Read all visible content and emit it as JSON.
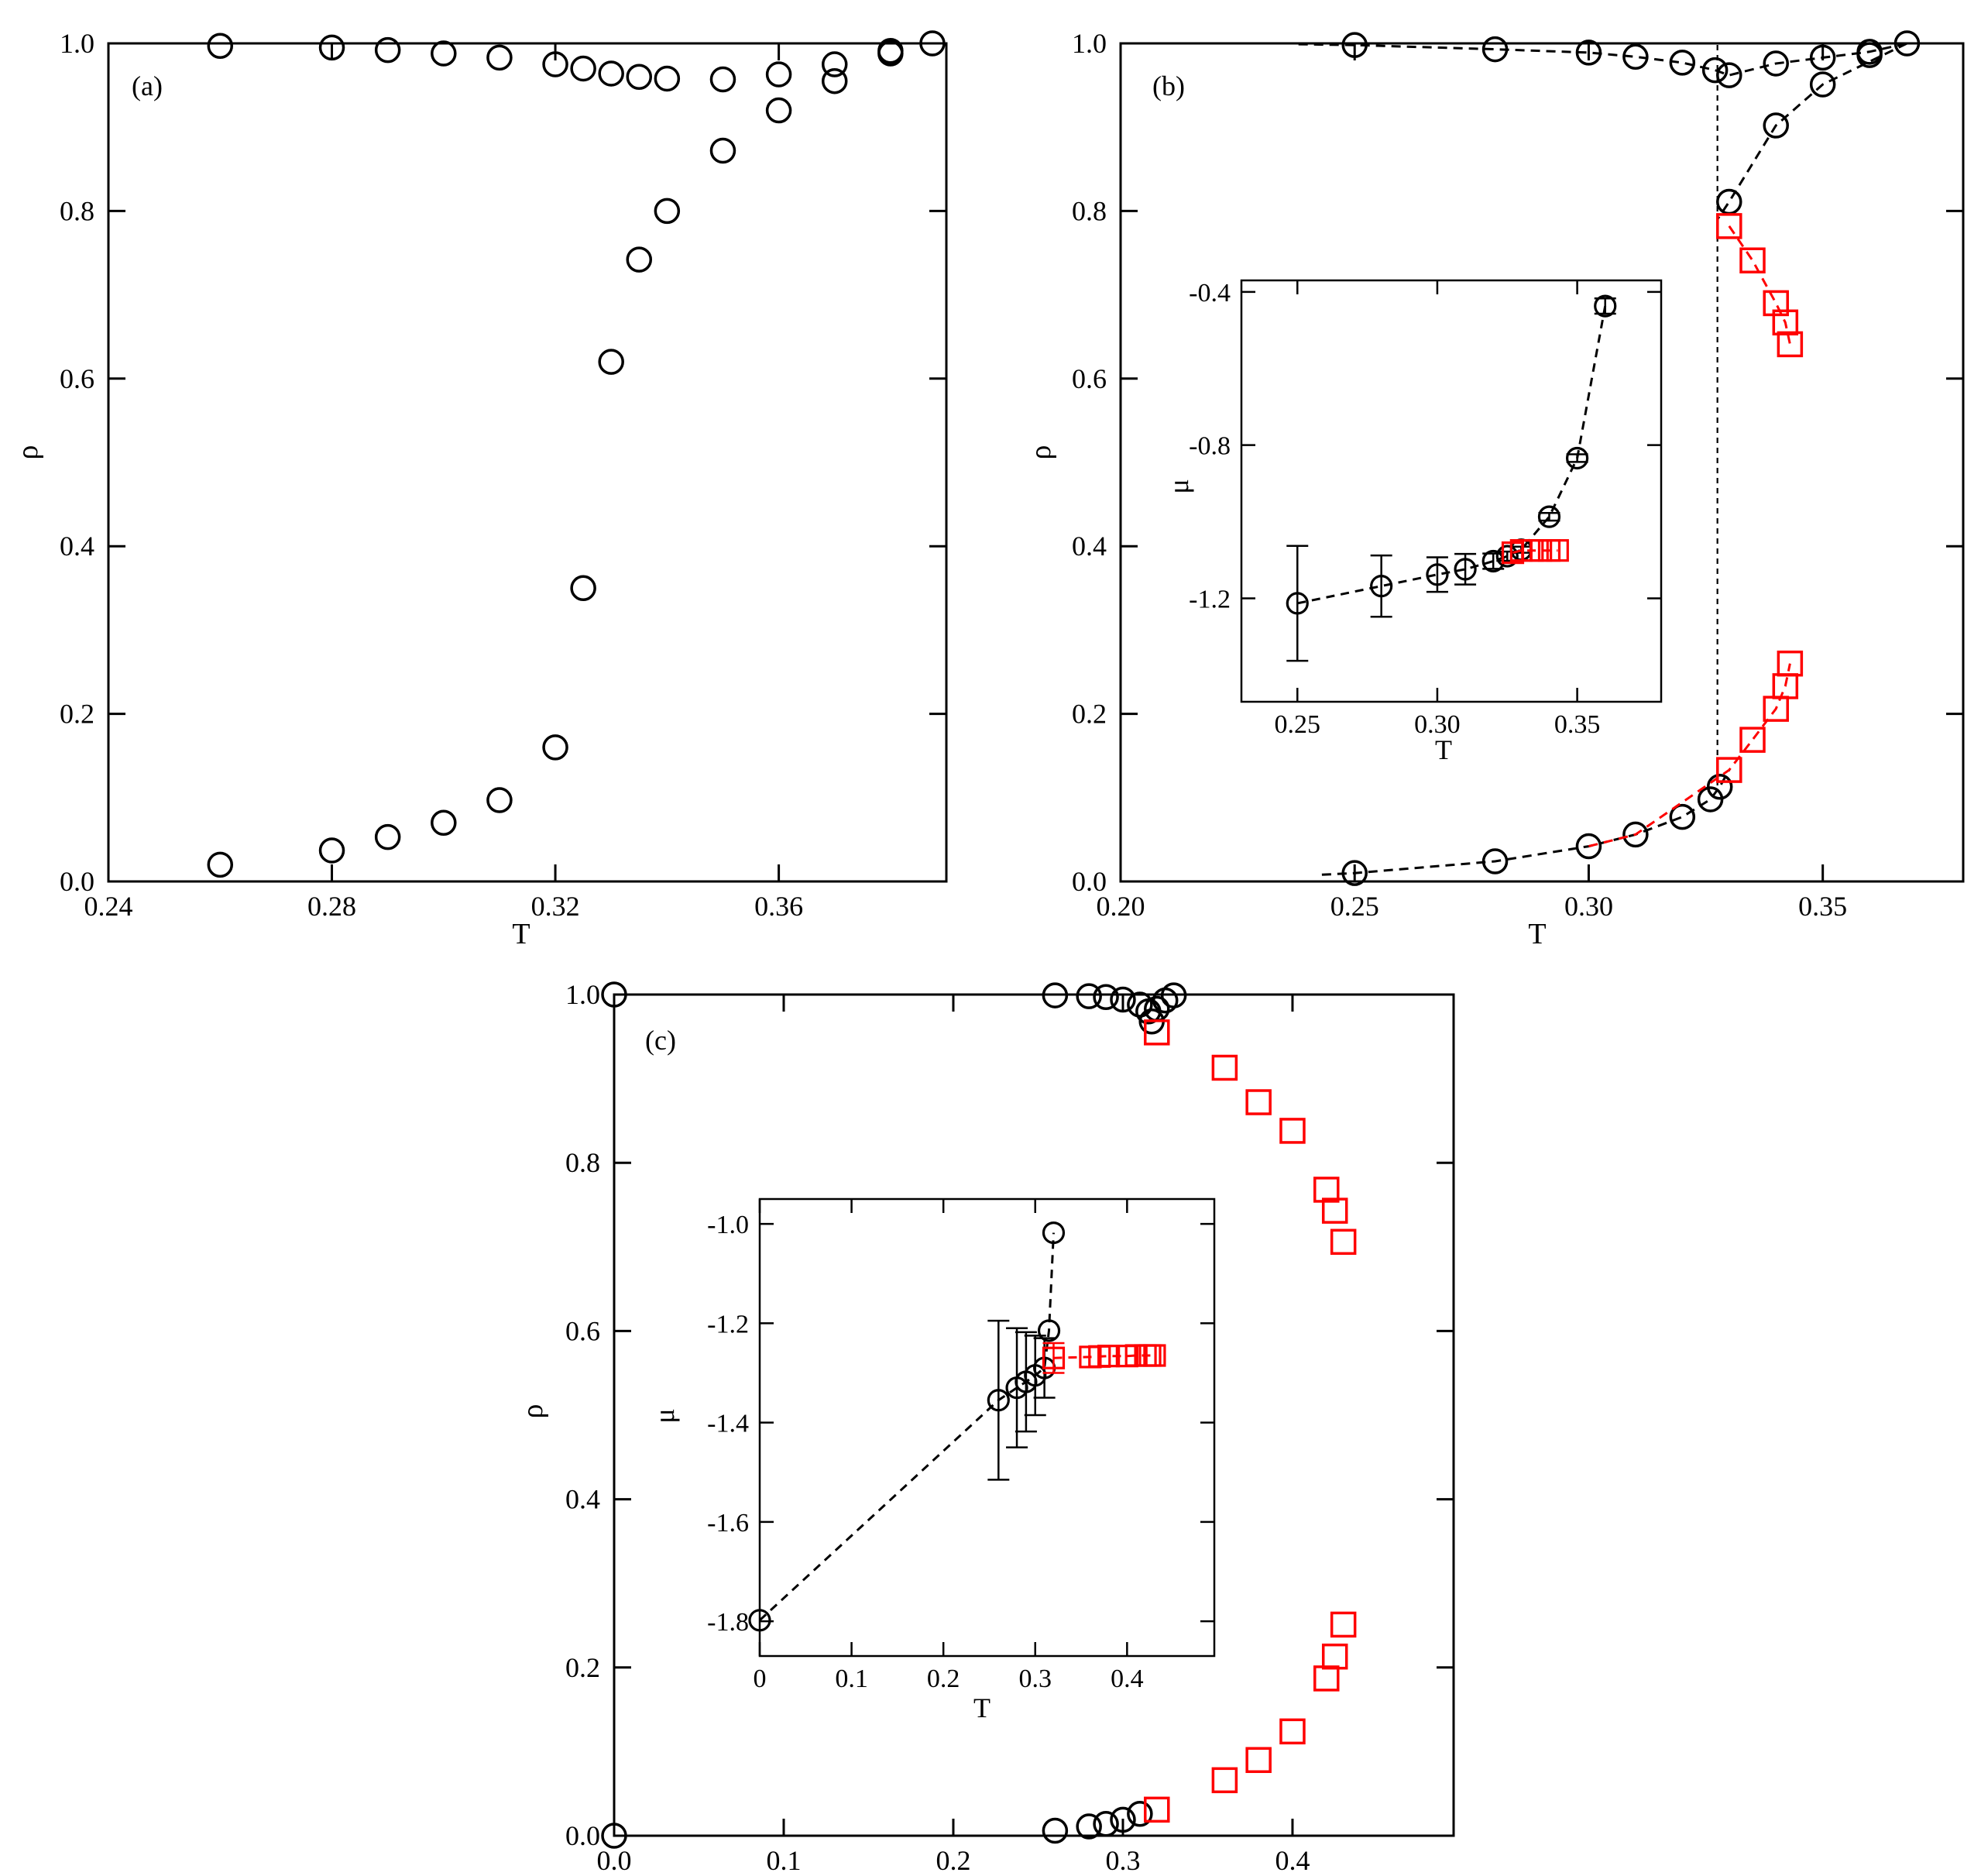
{
  "chart_data": [
    {
      "panel": "(a)",
      "type": "scatter",
      "title": "",
      "xlabel": "T",
      "ylabel": "ρ",
      "xlim": [
        0.24,
        0.39
      ],
      "ylim": [
        0.0,
        1.0
      ],
      "xticks": [
        0.24,
        0.28,
        0.32,
        0.36
      ],
      "xtick_labels": [
        "0.24",
        "0.28",
        "0.32",
        "0.36"
      ],
      "yticks": [
        0.0,
        0.2,
        0.4,
        0.6,
        0.8,
        1.0
      ],
      "ytick_labels": [
        "0.0",
        "0.2",
        "0.4",
        "0.6",
        "0.8",
        "1.0"
      ],
      "grid": false,
      "series": [
        {
          "marker": "circle",
          "color": "#000000",
          "line": "none",
          "points": [
            [
              0.26,
              0.997
            ],
            [
              0.28,
              0.995
            ],
            [
              0.29,
              0.992
            ],
            [
              0.3,
              0.988
            ],
            [
              0.31,
              0.983
            ],
            [
              0.32,
              0.975
            ],
            [
              0.325,
              0.97
            ],
            [
              0.33,
              0.964
            ],
            [
              0.335,
              0.96
            ],
            [
              0.34,
              0.958
            ],
            [
              0.35,
              0.957
            ],
            [
              0.36,
              0.963
            ],
            [
              0.37,
              0.975
            ],
            [
              0.38,
              0.988
            ],
            [
              0.38,
              0.991
            ],
            [
              0.3875,
              1.0
            ],
            [
              0.26,
              0.02
            ],
            [
              0.28,
              0.037
            ],
            [
              0.29,
              0.053
            ],
            [
              0.3,
              0.07
            ],
            [
              0.31,
              0.097
            ],
            [
              0.32,
              0.16
            ],
            [
              0.325,
              0.35
            ],
            [
              0.33,
              0.62
            ],
            [
              0.335,
              0.742
            ],
            [
              0.34,
              0.8
            ],
            [
              0.35,
              0.872
            ],
            [
              0.36,
              0.92
            ],
            [
              0.37,
              0.955
            ]
          ]
        }
      ]
    },
    {
      "panel": "(b)",
      "type": "line",
      "title": "",
      "xlabel": "T",
      "ylabel": "ρ",
      "xlim": [
        0.2,
        0.38
      ],
      "ylim": [
        0.0,
        1.0
      ],
      "xticks": [
        0.2,
        0.25,
        0.3,
        0.35
      ],
      "xtick_labels": [
        "0.20",
        "0.25",
        "0.30",
        "0.35"
      ],
      "yticks": [
        0.0,
        0.2,
        0.4,
        0.6,
        0.8,
        1.0
      ],
      "ytick_labels": [
        "0.0",
        "0.2",
        "0.4",
        "0.6",
        "0.8",
        "1.0"
      ],
      "grid": false,
      "vertical_line_x": 0.3275,
      "series": [
        {
          "marker": "circle",
          "color": "#000000",
          "line": "dashed",
          "line_points": [
            [
              0.238,
              0.999
            ],
            [
              0.25,
              0.998
            ],
            [
              0.28,
              0.993
            ],
            [
              0.3,
              0.989
            ],
            [
              0.31,
              0.984
            ],
            [
              0.32,
              0.977
            ],
            [
              0.327,
              0.968
            ],
            [
              0.33,
              0.962
            ],
            [
              0.34,
              0.976
            ],
            [
              0.35,
              0.983
            ],
            [
              0.36,
              0.99
            ],
            [
              0.368,
              1.0
            ]
          ],
          "points": [
            [
              0.25,
              0.998
            ],
            [
              0.28,
              0.993
            ],
            [
              0.3,
              0.989
            ],
            [
              0.31,
              0.984
            ],
            [
              0.32,
              0.977
            ],
            [
              0.327,
              0.968
            ],
            [
              0.33,
              0.962
            ],
            [
              0.34,
              0.976
            ],
            [
              0.35,
              0.983
            ],
            [
              0.36,
              0.99
            ],
            [
              0.36,
              0.986
            ],
            [
              0.368,
              1.0
            ]
          ]
        },
        {
          "marker": "circle",
          "color": "#000000",
          "line": "dashed",
          "line_points": [
            [
              0.368,
              1.0
            ],
            [
              0.35,
              0.951
            ],
            [
              0.34,
              0.902
            ],
            [
              0.33,
              0.811
            ],
            [
              0.3275,
              0.79
            ]
          ],
          "points": [
            [
              0.35,
              0.951
            ],
            [
              0.34,
              0.902
            ],
            [
              0.33,
              0.811
            ]
          ]
        },
        {
          "marker": "circle",
          "color": "#000000",
          "line": "dashed",
          "line_points": [
            [
              0.243,
              0.008
            ],
            [
              0.25,
              0.01
            ],
            [
              0.28,
              0.024
            ],
            [
              0.3,
              0.042
            ],
            [
              0.31,
              0.056
            ],
            [
              0.32,
              0.077
            ],
            [
              0.326,
              0.098
            ],
            [
              0.328,
              0.113
            ],
            [
              0.33,
              0.133
            ]
          ],
          "points": [
            [
              0.25,
              0.01
            ],
            [
              0.28,
              0.024
            ],
            [
              0.3,
              0.042
            ],
            [
              0.31,
              0.056
            ],
            [
              0.32,
              0.077
            ],
            [
              0.326,
              0.098
            ],
            [
              0.328,
              0.113
            ]
          ]
        },
        {
          "marker": "square",
          "color": "#ff0000",
          "line": "dashed",
          "line_points": [
            [
              0.33,
              0.782
            ],
            [
              0.335,
              0.741
            ],
            [
              0.34,
              0.69
            ],
            [
              0.342,
              0.667
            ],
            [
              0.343,
              0.641
            ]
          ],
          "points": [
            [
              0.33,
              0.782
            ],
            [
              0.335,
              0.741
            ],
            [
              0.34,
              0.69
            ],
            [
              0.342,
              0.667
            ],
            [
              0.343,
              0.641
            ]
          ]
        },
        {
          "marker": "square",
          "color": "#ff0000",
          "line": "dashed",
          "line_points": [
            [
              0.3,
              0.042
            ],
            [
              0.31,
              0.056
            ],
            [
              0.33,
              0.133
            ],
            [
              0.335,
              0.169
            ],
            [
              0.34,
              0.206
            ],
            [
              0.342,
              0.233
            ],
            [
              0.343,
              0.26
            ]
          ],
          "points": [
            [
              0.33,
              0.133
            ],
            [
              0.335,
              0.169
            ],
            [
              0.34,
              0.206
            ],
            [
              0.342,
              0.233
            ],
            [
              0.343,
              0.26
            ]
          ]
        }
      ],
      "inset": {
        "type": "line",
        "xlabel": "T",
        "ylabel": "μ",
        "xlim": [
          0.23,
          0.38
        ],
        "ylim": [
          -1.47,
          -0.37
        ],
        "xticks": [
          0.25,
          0.3,
          0.35
        ],
        "xtick_labels": [
          "0.25",
          "0.30",
          "0.35"
        ],
        "yticks": [
          -1.2,
          -0.8,
          -0.4
        ],
        "ytick_labels": [
          "-1.2",
          "-0.8",
          "-0.4"
        ],
        "series": [
          {
            "marker": "circle",
            "color": "#000000",
            "line": "dashed",
            "points": [
              [
                0.25,
                -1.213,
                0.15
              ],
              [
                0.28,
                -1.168,
                0.08
              ],
              [
                0.3,
                -1.138,
                0.045
              ],
              [
                0.31,
                -1.124,
                0.04
              ],
              [
                0.32,
                -1.103,
                0.02
              ],
              [
                0.325,
                -1.09,
                0.012
              ],
              [
                0.33,
                -1.073,
                0.008
              ],
              [
                0.34,
                -0.987,
                0.01
              ],
              [
                0.35,
                -0.834,
                0.01
              ],
              [
                0.36,
                -0.437,
                0.02
              ]
            ]
          },
          {
            "marker": "square",
            "color": "#ff0000",
            "line": "dashed",
            "points": [
              [
                0.327,
                -1.081,
                0.0
              ],
              [
                0.33,
                -1.075,
                0.0
              ],
              [
                0.334,
                -1.075,
                0.0
              ],
              [
                0.337,
                -1.075,
                0.0
              ],
              [
                0.34,
                -1.075,
                0.0
              ],
              [
                0.343,
                -1.075,
                0.0
              ]
            ]
          }
        ]
      }
    },
    {
      "panel": "(c)",
      "type": "scatter",
      "title": "",
      "xlabel": "",
      "ylabel": "ρ",
      "xlim": [
        0.0,
        0.495
      ],
      "ylim": [
        0.0,
        1.0
      ],
      "xticks": [
        0.0,
        0.1,
        0.2,
        0.3,
        0.4
      ],
      "xtick_labels": [
        "0.0",
        "0.1",
        "0.2",
        "0.3",
        "0.4"
      ],
      "yticks": [
        0.0,
        0.2,
        0.4,
        0.6,
        0.8,
        1.0
      ],
      "ytick_labels": [
        "0.0",
        "0.2",
        "0.4",
        "0.6",
        "0.8",
        "1.0"
      ],
      "grid": false,
      "series": [
        {
          "marker": "circle",
          "color": "#000000",
          "line": "none",
          "points": [
            [
              0.0,
              1.0
            ],
            [
              0.26,
              0.999
            ],
            [
              0.28,
              0.998
            ],
            [
              0.29,
              0.997
            ],
            [
              0.3,
              0.994
            ],
            [
              0.31,
              0.988
            ],
            [
              0.315,
              0.98
            ],
            [
              0.317,
              0.968
            ],
            [
              0.32,
              0.983
            ],
            [
              0.325,
              0.993
            ],
            [
              0.33,
              0.999
            ],
            [
              0.0,
              0.0
            ],
            [
              0.26,
              0.006
            ],
            [
              0.28,
              0.011
            ],
            [
              0.29,
              0.014
            ],
            [
              0.3,
              0.019
            ],
            [
              0.31,
              0.026
            ]
          ]
        },
        {
          "marker": "square",
          "color": "#ff0000",
          "line": "none",
          "points": [
            [
              0.32,
              0.955
            ],
            [
              0.36,
              0.913
            ],
            [
              0.38,
              0.872
            ],
            [
              0.4,
              0.838
            ],
            [
              0.42,
              0.768
            ],
            [
              0.425,
              0.743
            ],
            [
              0.43,
              0.706
            ],
            [
              0.32,
              0.031
            ],
            [
              0.36,
              0.066
            ],
            [
              0.38,
              0.09
            ],
            [
              0.4,
              0.124
            ],
            [
              0.42,
              0.187
            ],
            [
              0.425,
              0.213
            ],
            [
              0.43,
              0.251
            ]
          ]
        }
      ],
      "inset": {
        "type": "line",
        "xlabel": "T",
        "ylabel": "μ",
        "xlim": [
          0.0,
          0.495
        ],
        "ylim": [
          -1.87,
          -0.95
        ],
        "xticks": [
          0.0,
          0.1,
          0.2,
          0.3,
          0.4
        ],
        "xtick_labels": [
          "0",
          "0.1",
          "0.2",
          "0.3",
          "0.4"
        ],
        "yticks": [
          -1.8,
          -1.6,
          -1.4,
          -1.2,
          -1.0
        ],
        "ytick_labels": [
          "-1.8",
          "-1.6",
          "-1.4",
          "-1.2",
          "-1.0"
        ],
        "series": [
          {
            "marker": "circle",
            "color": "#000000",
            "line": "dashed",
            "points": [
              [
                0.0,
                -1.798,
                0.0
              ],
              [
                0.26,
                -1.355,
                0.16
              ],
              [
                0.28,
                -1.33,
                0.12
              ],
              [
                0.29,
                -1.318,
                0.1
              ],
              [
                0.3,
                -1.305,
                0.08
              ],
              [
                0.31,
                -1.29,
                0.06
              ],
              [
                0.315,
                -1.215,
                0.0
              ],
              [
                0.32,
                -1.018,
                0.0
              ]
            ]
          },
          {
            "marker": "square",
            "color": "#ff0000",
            "line": "dashed",
            "points": [
              [
                0.32,
                -1.27,
                0.03
              ],
              [
                0.36,
                -1.268,
                0.0
              ],
              [
                0.37,
                -1.267,
                0.0
              ],
              [
                0.38,
                -1.266,
                0.0
              ],
              [
                0.4,
                -1.266,
                0.0
              ],
              [
                0.41,
                -1.265,
                0.0
              ],
              [
                0.42,
                -1.265,
                0.0
              ],
              [
                0.425,
                -1.265,
                0.0
              ],
              [
                0.43,
                -1.265,
                0.0
              ]
            ]
          }
        ]
      }
    }
  ]
}
